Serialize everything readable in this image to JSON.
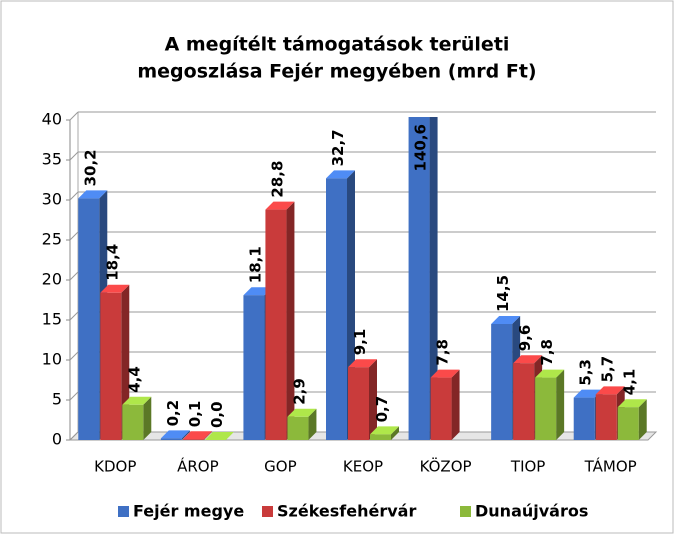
{
  "chart_data": {
    "type": "bar",
    "title": [
      "A megítélt támogatások területi",
      "megoszlása Fejér megyében (mrd Ft)"
    ],
    "categories": [
      "KDOP",
      "ÁROP",
      "GOP",
      "KEOP",
      "KÖZOP",
      "TIOP",
      "TÁMOP"
    ],
    "series": [
      {
        "name": "Fejér megye",
        "color": "#3f70c4",
        "values": [
          30.2,
          0.2,
          18.1,
          32.7,
          140.6,
          14.5,
          5.3
        ],
        "value_labels": [
          "30,2",
          "0,2",
          "18,1",
          "32,7",
          "140,6",
          "14,5",
          "5,3"
        ]
      },
      {
        "name": "Székesfehérvár",
        "color": "#c93b3b",
        "values": [
          18.4,
          0.1,
          28.8,
          9.1,
          7.8,
          9.6,
          5.7
        ],
        "value_labels": [
          "18,4",
          "0,1",
          "28,8",
          "9,1",
          "7,8",
          "9,6",
          "5,7"
        ]
      },
      {
        "name": "Dunaújváros",
        "color": "#8cb93b",
        "values": [
          4.4,
          0.0,
          2.9,
          0.7,
          null,
          7.8,
          4.1
        ],
        "value_labels": [
          "4,4",
          "0,0",
          "2,9",
          "0,7",
          null,
          "7,8",
          "4,1"
        ]
      }
    ],
    "ylim": [
      0,
      40
    ],
    "yticks": [
      0,
      5,
      10,
      15,
      20,
      25,
      30,
      35,
      40
    ],
    "grid": true,
    "legend": "bottom"
  }
}
